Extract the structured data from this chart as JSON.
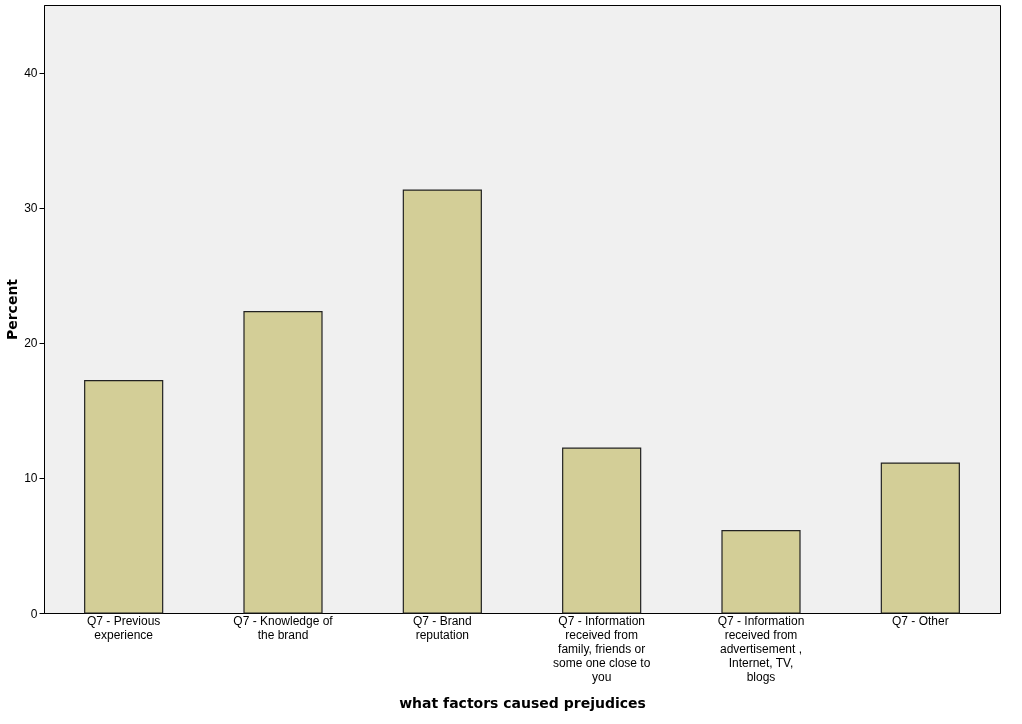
{
  "chart_data": {
    "type": "bar",
    "categories": [
      "Q7 - Previous experience",
      "Q7 - Knowledge of the brand",
      "Q7 - Brand reputation",
      "Q7 - Information received from family, friends or some one close to you",
      "Q7 - Information received from advertisement , Internet, TV, blogs",
      "Q7 - Other"
    ],
    "values": [
      17.2,
      22.3,
      31.3,
      12.2,
      6.1,
      11.1
    ],
    "color": "#d3ce97",
    "xlabel": "what factors caused prejudices",
    "ylabel": "Percent",
    "ylim": [
      0,
      45
    ],
    "yticks": [
      0,
      10,
      20,
      30,
      40
    ],
    "grid": false
  }
}
